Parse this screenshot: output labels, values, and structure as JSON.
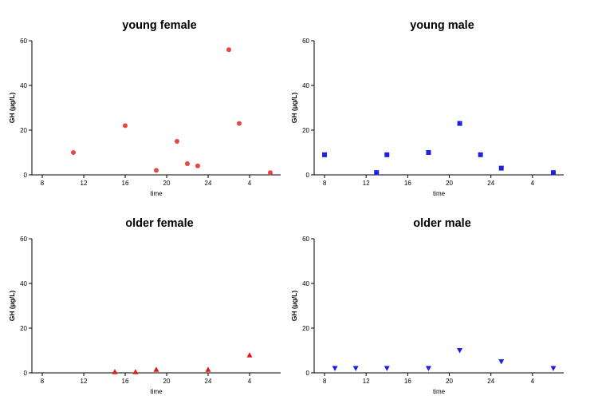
{
  "chart_data": [
    {
      "type": "scatter",
      "title": "young female",
      "xlabel": "time",
      "ylabel": "GH (µg/L)",
      "ylim": [
        0,
        60
      ],
      "yticks": [
        "0",
        "20",
        "40",
        "60"
      ],
      "xticks": [
        "8",
        "12",
        "16",
        "20",
        "24",
        "4"
      ],
      "marker": "circle",
      "color": "#e84545",
      "series": [
        {
          "x": [
            11,
            16,
            19,
            21,
            22,
            23,
            26,
            27,
            30
          ],
          "y": [
            10,
            22,
            2,
            15,
            5,
            4,
            56,
            23,
            1
          ]
        }
      ]
    },
    {
      "type": "scatter",
      "title": "young male",
      "xlabel": "time",
      "ylabel": "GH (µg/L)",
      "ylim": [
        0,
        60
      ],
      "yticks": [
        "0",
        "20",
        "40",
        "60"
      ],
      "xticks": [
        "8",
        "12",
        "16",
        "20",
        "24",
        "4"
      ],
      "marker": "square",
      "color": "#1f1fe0",
      "series": [
        {
          "x": [
            8,
            13,
            14,
            18,
            21,
            23,
            25,
            30
          ],
          "y": [
            9,
            1,
            9,
            10,
            23,
            9,
            3,
            1
          ]
        }
      ]
    },
    {
      "type": "scatter",
      "title": "older female",
      "xlabel": "time",
      "ylabel": "GH (µg/L)",
      "ylim": [
        0,
        60
      ],
      "yticks": [
        "0",
        "20",
        "40",
        "60"
      ],
      "xticks": [
        "8",
        "12",
        "16",
        "20",
        "24",
        "4"
      ],
      "marker": "triangle-up",
      "color": "#e01a1a",
      "series": [
        {
          "x": [
            15,
            17,
            19,
            24,
            28
          ],
          "y": [
            0.5,
            0.5,
            1.5,
            1.5,
            8
          ]
        }
      ]
    },
    {
      "type": "scatter",
      "title": "older male",
      "xlabel": "time",
      "ylabel": "GH (µg/L)",
      "ylim": [
        0,
        60
      ],
      "yticks": [
        "0",
        "20",
        "40",
        "60"
      ],
      "xticks": [
        "8",
        "12",
        "16",
        "20",
        "24",
        "4"
      ],
      "marker": "triangle-down",
      "color": "#1f1fe0",
      "series": [
        {
          "x": [
            9,
            11,
            14,
            18,
            21,
            25,
            30
          ],
          "y": [
            2,
            2,
            2,
            2,
            10,
            5,
            2
          ]
        }
      ]
    }
  ]
}
